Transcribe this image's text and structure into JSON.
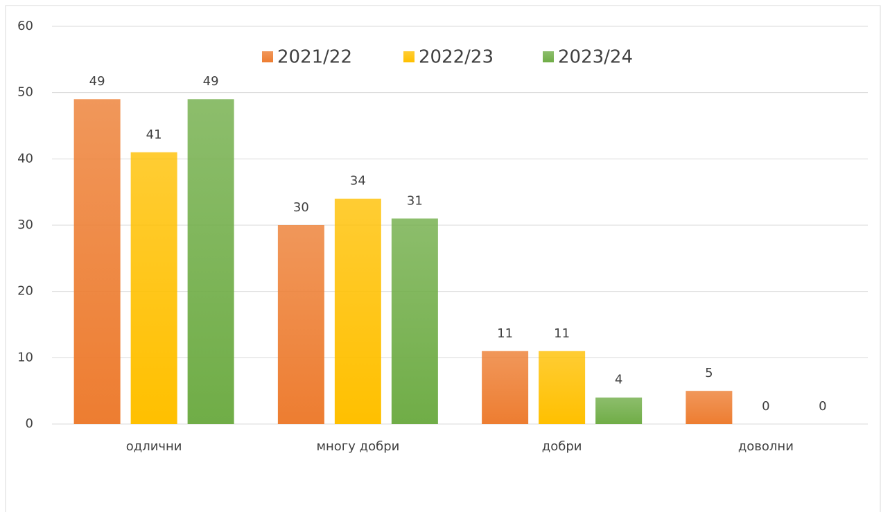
{
  "chart_data": {
    "type": "bar",
    "categories": [
      "одлични",
      "многу добри",
      "добри",
      "доволни"
    ],
    "series": [
      {
        "name": "2021/22",
        "color": "#ed7d31",
        "values": [
          49,
          30,
          11,
          5
        ]
      },
      {
        "name": "2022/23",
        "color": "#ffc000",
        "values": [
          41,
          34,
          11,
          0
        ]
      },
      {
        "name": "2023/24",
        "color": "#70ad47",
        "values": [
          49,
          31,
          4,
          0
        ]
      }
    ],
    "ylim": [
      0,
      60
    ],
    "yticks": [
      0,
      10,
      20,
      30,
      40,
      50,
      60
    ],
    "grid": true,
    "legend": "top"
  }
}
